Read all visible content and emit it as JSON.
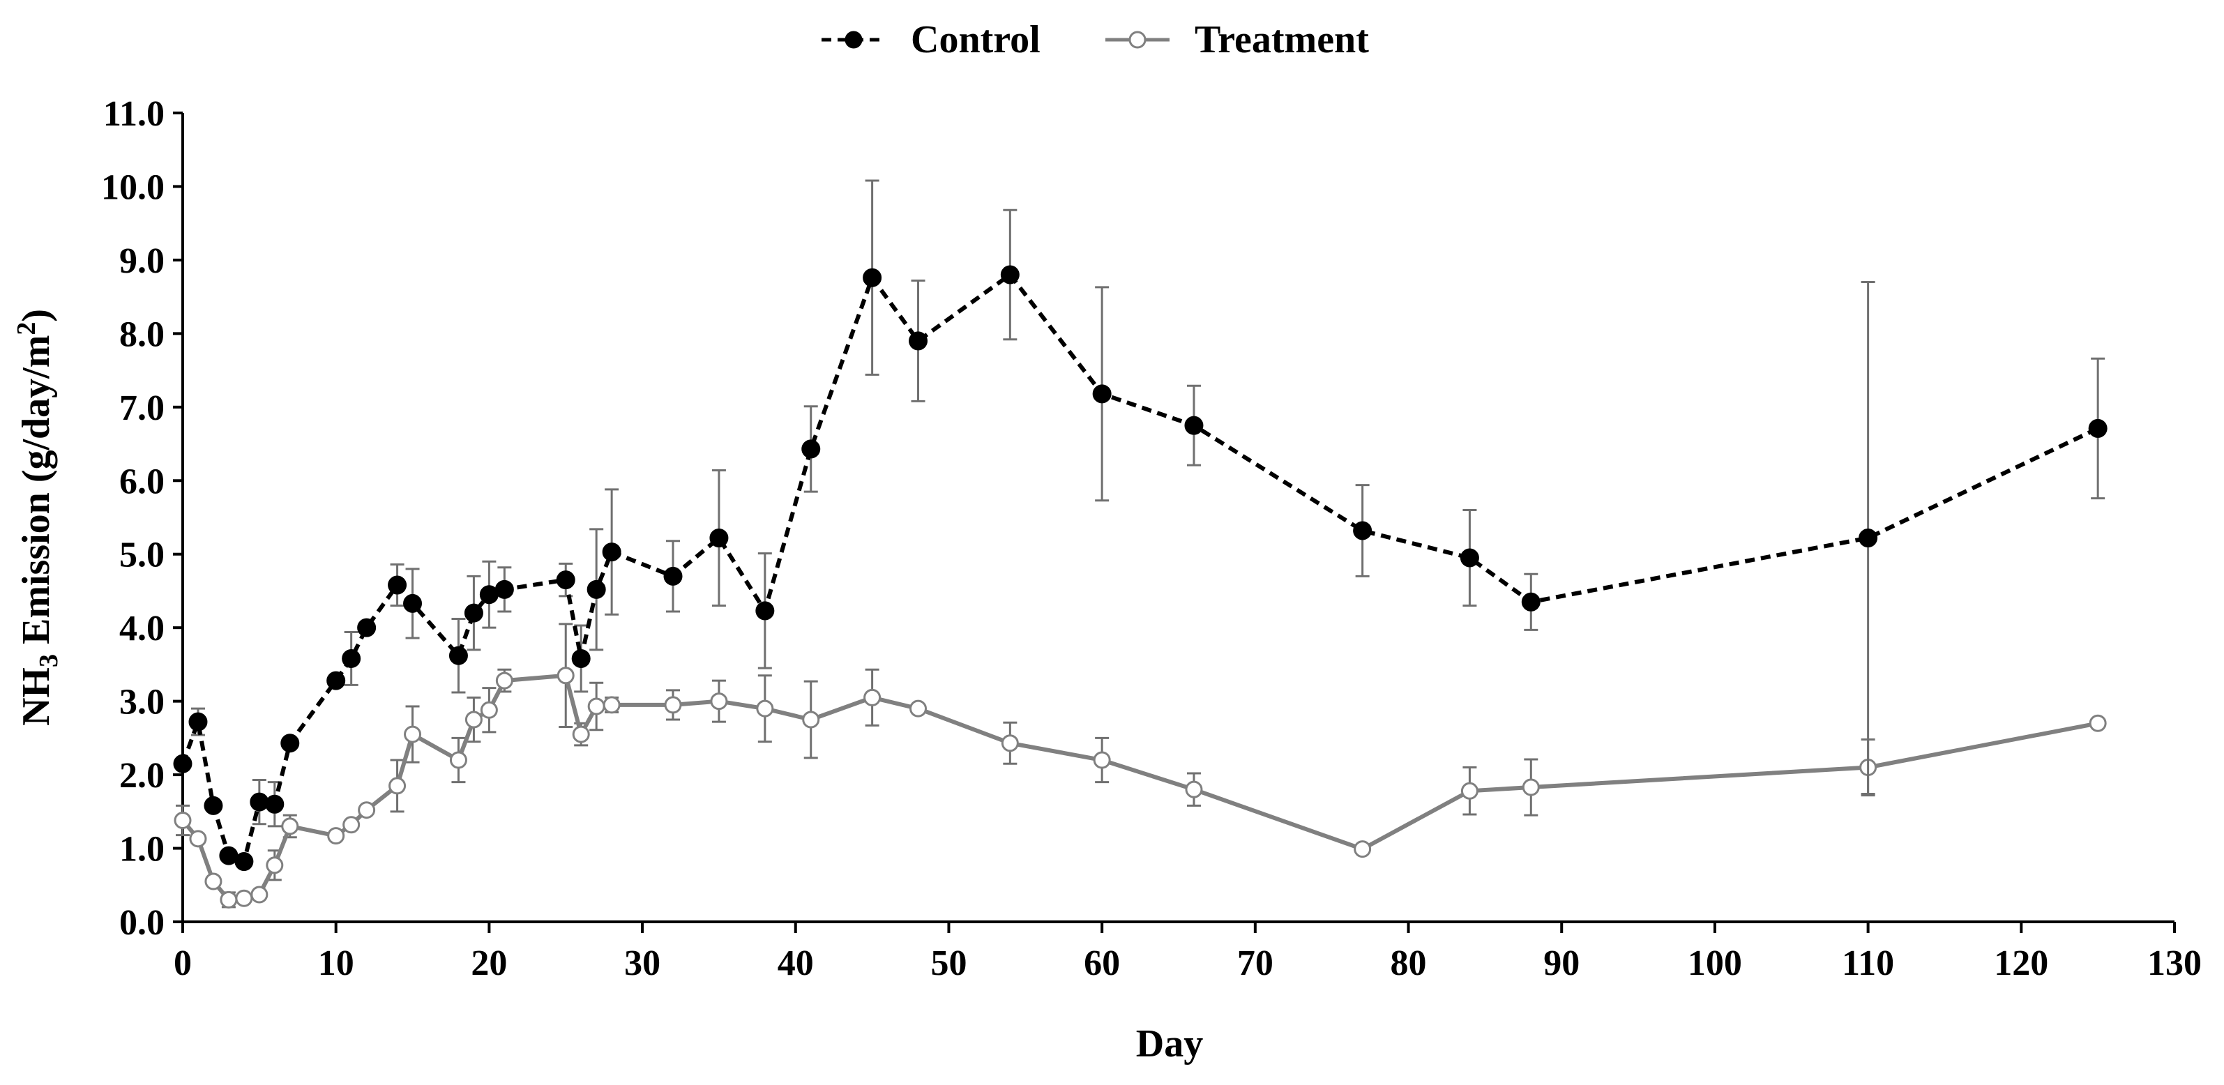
{
  "chart_data": {
    "type": "line",
    "title": "",
    "xlabel": "Day",
    "ylabel_main": "NH",
    "ylabel_subscript": "3",
    "ylabel_middle": " Emission (g/day/m",
    "ylabel_superscript": "2",
    "ylabel_end": ")",
    "xlim": [
      0,
      130
    ],
    "ylim": [
      0,
      11
    ],
    "x_ticks": [
      0,
      10,
      20,
      30,
      40,
      50,
      60,
      70,
      80,
      90,
      100,
      110,
      120,
      130
    ],
    "y_ticks": [
      "0.0",
      "1.0",
      "2.0",
      "3.0",
      "4.0",
      "5.0",
      "6.0",
      "7.0",
      "8.0",
      "9.0",
      "10.0",
      "11.0"
    ],
    "grid": false,
    "legend_position": "top-center",
    "series": [
      {
        "name": "Control",
        "color": "#000000",
        "line_style": "dashed",
        "marker": "filled-circle",
        "x": [
          0,
          1,
          2,
          3,
          4,
          5,
          6,
          7,
          10,
          11,
          12,
          14,
          15,
          18,
          19,
          20,
          21,
          25,
          26,
          27,
          28,
          32,
          35,
          38,
          41,
          45,
          48,
          54,
          60,
          66,
          77,
          84,
          88,
          110,
          125
        ],
        "y": [
          2.15,
          2.72,
          1.58,
          0.9,
          0.82,
          1.63,
          1.6,
          2.43,
          3.28,
          3.58,
          4.0,
          4.58,
          4.33,
          3.62,
          4.2,
          4.45,
          4.52,
          4.65,
          3.58,
          4.52,
          5.03,
          4.7,
          5.22,
          4.23,
          6.43,
          8.76,
          7.9,
          8.8,
          7.18,
          6.75,
          5.32,
          4.95,
          4.35,
          5.22,
          6.71
        ],
        "error": [
          0,
          0.18,
          0,
          0,
          0,
          0.3,
          0.3,
          0,
          0,
          0.36,
          0,
          0.28,
          0.47,
          0.5,
          0.5,
          0.45,
          0.3,
          0.22,
          0.45,
          0.82,
          0.85,
          0.48,
          0.92,
          0.78,
          0.58,
          1.32,
          0.82,
          0.88,
          1.45,
          0.54,
          0.62,
          0.65,
          0.38,
          3.48,
          0.95
        ]
      },
      {
        "name": "Treatment",
        "color": "#808080",
        "line_style": "solid",
        "marker": "open-circle",
        "x": [
          0,
          1,
          2,
          3,
          4,
          5,
          6,
          7,
          10,
          11,
          12,
          14,
          15,
          18,
          19,
          20,
          21,
          25,
          26,
          27,
          28,
          32,
          35,
          38,
          41,
          45,
          48,
          54,
          60,
          66,
          77,
          84,
          88,
          110,
          125
        ],
        "y": [
          1.38,
          1.13,
          0.55,
          0.3,
          0.32,
          0.37,
          0.77,
          1.3,
          1.17,
          1.32,
          1.52,
          1.85,
          2.55,
          2.2,
          2.75,
          2.88,
          3.28,
          3.35,
          2.55,
          2.93,
          2.95,
          2.95,
          3.0,
          2.9,
          2.75,
          3.05,
          2.9,
          2.43,
          2.2,
          1.8,
          0.99,
          1.78,
          1.83,
          2.1,
          2.7
        ],
        "error": [
          0.2,
          0,
          0,
          0.1,
          0,
          0,
          0.2,
          0.15,
          0,
          0,
          0,
          0.35,
          0.38,
          0.3,
          0.3,
          0.3,
          0.15,
          0.7,
          0.15,
          0.32,
          0.1,
          0.2,
          0.28,
          0.45,
          0.52,
          0.38,
          0,
          0.28,
          0.3,
          0.22,
          0,
          0.32,
          0.38,
          0.38,
          0.05
        ]
      }
    ]
  }
}
